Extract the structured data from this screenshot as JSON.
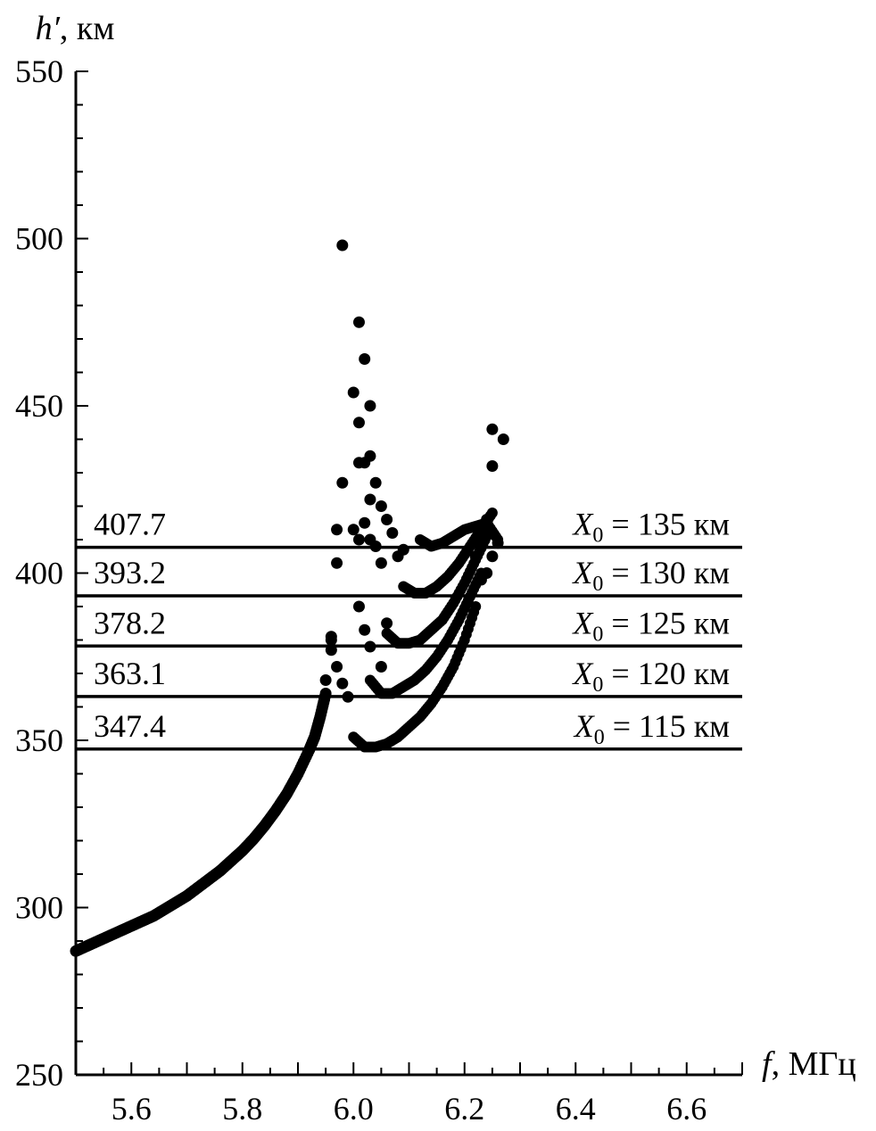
{
  "chart_data": {
    "type": "scatter",
    "ylabel": "h′, км",
    "ylabel_main": "h′",
    "ylabel_unit": ", км",
    "xlabel": "f, МГц",
    "xlabel_main": "f",
    "xlabel_unit": ", МГц",
    "xlim": [
      5.5,
      6.7
    ],
    "ylim": [
      250,
      550
    ],
    "x_ticks": [
      5.6,
      5.8,
      6.0,
      6.2,
      6.4,
      6.6
    ],
    "x_tick_labels": [
      "5.6",
      "5.8",
      "6.0",
      "6.2",
      "6.4",
      "6.6"
    ],
    "y_ticks": [
      250,
      300,
      350,
      400,
      450,
      500,
      550
    ],
    "y_tick_labels": [
      "250",
      "300",
      "350",
      "400",
      "450",
      "500",
      "550"
    ],
    "grid": false,
    "levels": [
      {
        "value": 407.7,
        "label": "407.7",
        "x0_symbol": "X",
        "x0_sub": "0",
        "x0_text": " = 135 км"
      },
      {
        "value": 393.2,
        "label": "393.2",
        "x0_symbol": "X",
        "x0_sub": "0",
        "x0_text": " = 130 км"
      },
      {
        "value": 378.2,
        "label": "378.2",
        "x0_symbol": "X",
        "x0_sub": "0",
        "x0_text": " = 125 км"
      },
      {
        "value": 363.1,
        "label": "363.1",
        "x0_symbol": "X",
        "x0_sub": "0",
        "x0_text": " = 120 км"
      },
      {
        "value": 347.4,
        "label": "347.4",
        "x0_symbol": "X",
        "x0_sub": "0",
        "x0_text": " = 115 км"
      }
    ],
    "main_trace": {
      "x": [
        5.5,
        5.52,
        5.54,
        5.56,
        5.58,
        5.6,
        5.62,
        5.64,
        5.66,
        5.68,
        5.7,
        5.72,
        5.74,
        5.76,
        5.78,
        5.8,
        5.82,
        5.84,
        5.86,
        5.88,
        5.9,
        5.92,
        5.93,
        5.94,
        5.95
      ],
      "y": [
        287,
        288.5,
        290,
        291.5,
        293,
        294.5,
        296,
        297.5,
        299.5,
        301.5,
        303.5,
        306,
        308.5,
        311,
        314,
        317,
        320.5,
        324.5,
        329,
        334,
        340,
        347,
        351,
        357,
        364
      ]
    },
    "branches": [
      {
        "x": [
          6.0,
          6.02,
          6.04,
          6.06,
          6.08,
          6.1,
          6.12,
          6.14,
          6.16,
          6.18,
          6.2,
          6.22
        ],
        "y": [
          351,
          348,
          348,
          349,
          351,
          354,
          357,
          361,
          366,
          372,
          380,
          390
        ]
      },
      {
        "x": [
          6.03,
          6.05,
          6.07,
          6.09,
          6.11,
          6.13,
          6.15,
          6.17,
          6.19,
          6.21,
          6.23
        ],
        "y": [
          368,
          364,
          364,
          366,
          368,
          371,
          375,
          380,
          386,
          393,
          400
        ]
      },
      {
        "x": [
          6.06,
          6.08,
          6.1,
          6.12,
          6.14,
          6.16,
          6.18,
          6.2,
          6.22,
          6.24
        ],
        "y": [
          382,
          379,
          379,
          380,
          383,
          386,
          391,
          397,
          404,
          411
        ]
      },
      {
        "x": [
          6.09,
          6.11,
          6.13,
          6.15,
          6.17,
          6.19,
          6.21,
          6.23,
          6.25
        ],
        "y": [
          396,
          394,
          394,
          396,
          399,
          403,
          408,
          413,
          418
        ]
      },
      {
        "x": [
          6.12,
          6.14,
          6.16,
          6.18,
          6.2,
          6.22,
          6.24,
          6.26
        ],
        "y": [
          410,
          408,
          409,
          411,
          413,
          414,
          415,
          410
        ]
      }
    ],
    "scatter_points": {
      "x": [
        5.98,
        6.01,
        6.02,
        6.0,
        6.03,
        5.98,
        6.01,
        6.03,
        6.01,
        6.02,
        6.03,
        6.04,
        6.05,
        6.06,
        5.97,
        5.97,
        6.0,
        6.01,
        6.02,
        6.03,
        6.04,
        6.05,
        6.07,
        6.08,
        6.09,
        5.96,
        5.96,
        5.97,
        5.98,
        5.99,
        6.01,
        6.02,
        6.03,
        6.05,
        6.06,
        5.95,
        5.96,
        6.25,
        6.27,
        6.25,
        6.24,
        6.25,
        6.26,
        6.25,
        6.24,
        6.23,
        6.22
      ],
      "y": [
        498,
        475,
        464,
        454,
        450,
        427,
        433,
        435,
        445,
        433,
        422,
        427,
        420,
        416,
        413,
        403,
        413,
        410,
        415,
        410,
        408,
        403,
        412,
        405,
        407,
        381,
        377,
        372,
        367,
        363,
        390,
        383,
        378,
        372,
        385,
        368,
        380,
        443,
        440,
        432,
        416,
        412,
        409,
        405,
        400,
        398,
        405
      ]
    }
  }
}
